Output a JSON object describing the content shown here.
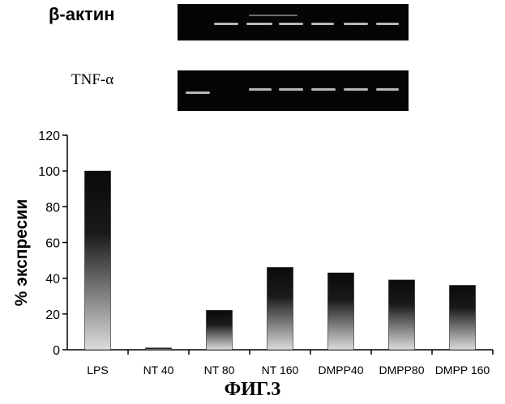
{
  "figure": {
    "beta_actin_label": "β-актин",
    "tnf_label": "TNF-α",
    "caption": "ФИГ.3"
  },
  "chart_data": {
    "type": "bar",
    "categories": [
      "LPS",
      "NT 40",
      "NT 80",
      "NT 160",
      "DMPP40",
      "DMPP80",
      "DMPP 160"
    ],
    "values": [
      100,
      1,
      22,
      46,
      43,
      39,
      36
    ],
    "ylabel": "% экспресии",
    "xlabel": "",
    "ylim": [
      0,
      120
    ],
    "yticks": [
      0,
      20,
      40,
      60,
      80,
      100,
      120
    ],
    "grid": false,
    "bar_colors": {
      "top": "#0a0a0a",
      "bottom": "#dcdcdc"
    }
  }
}
